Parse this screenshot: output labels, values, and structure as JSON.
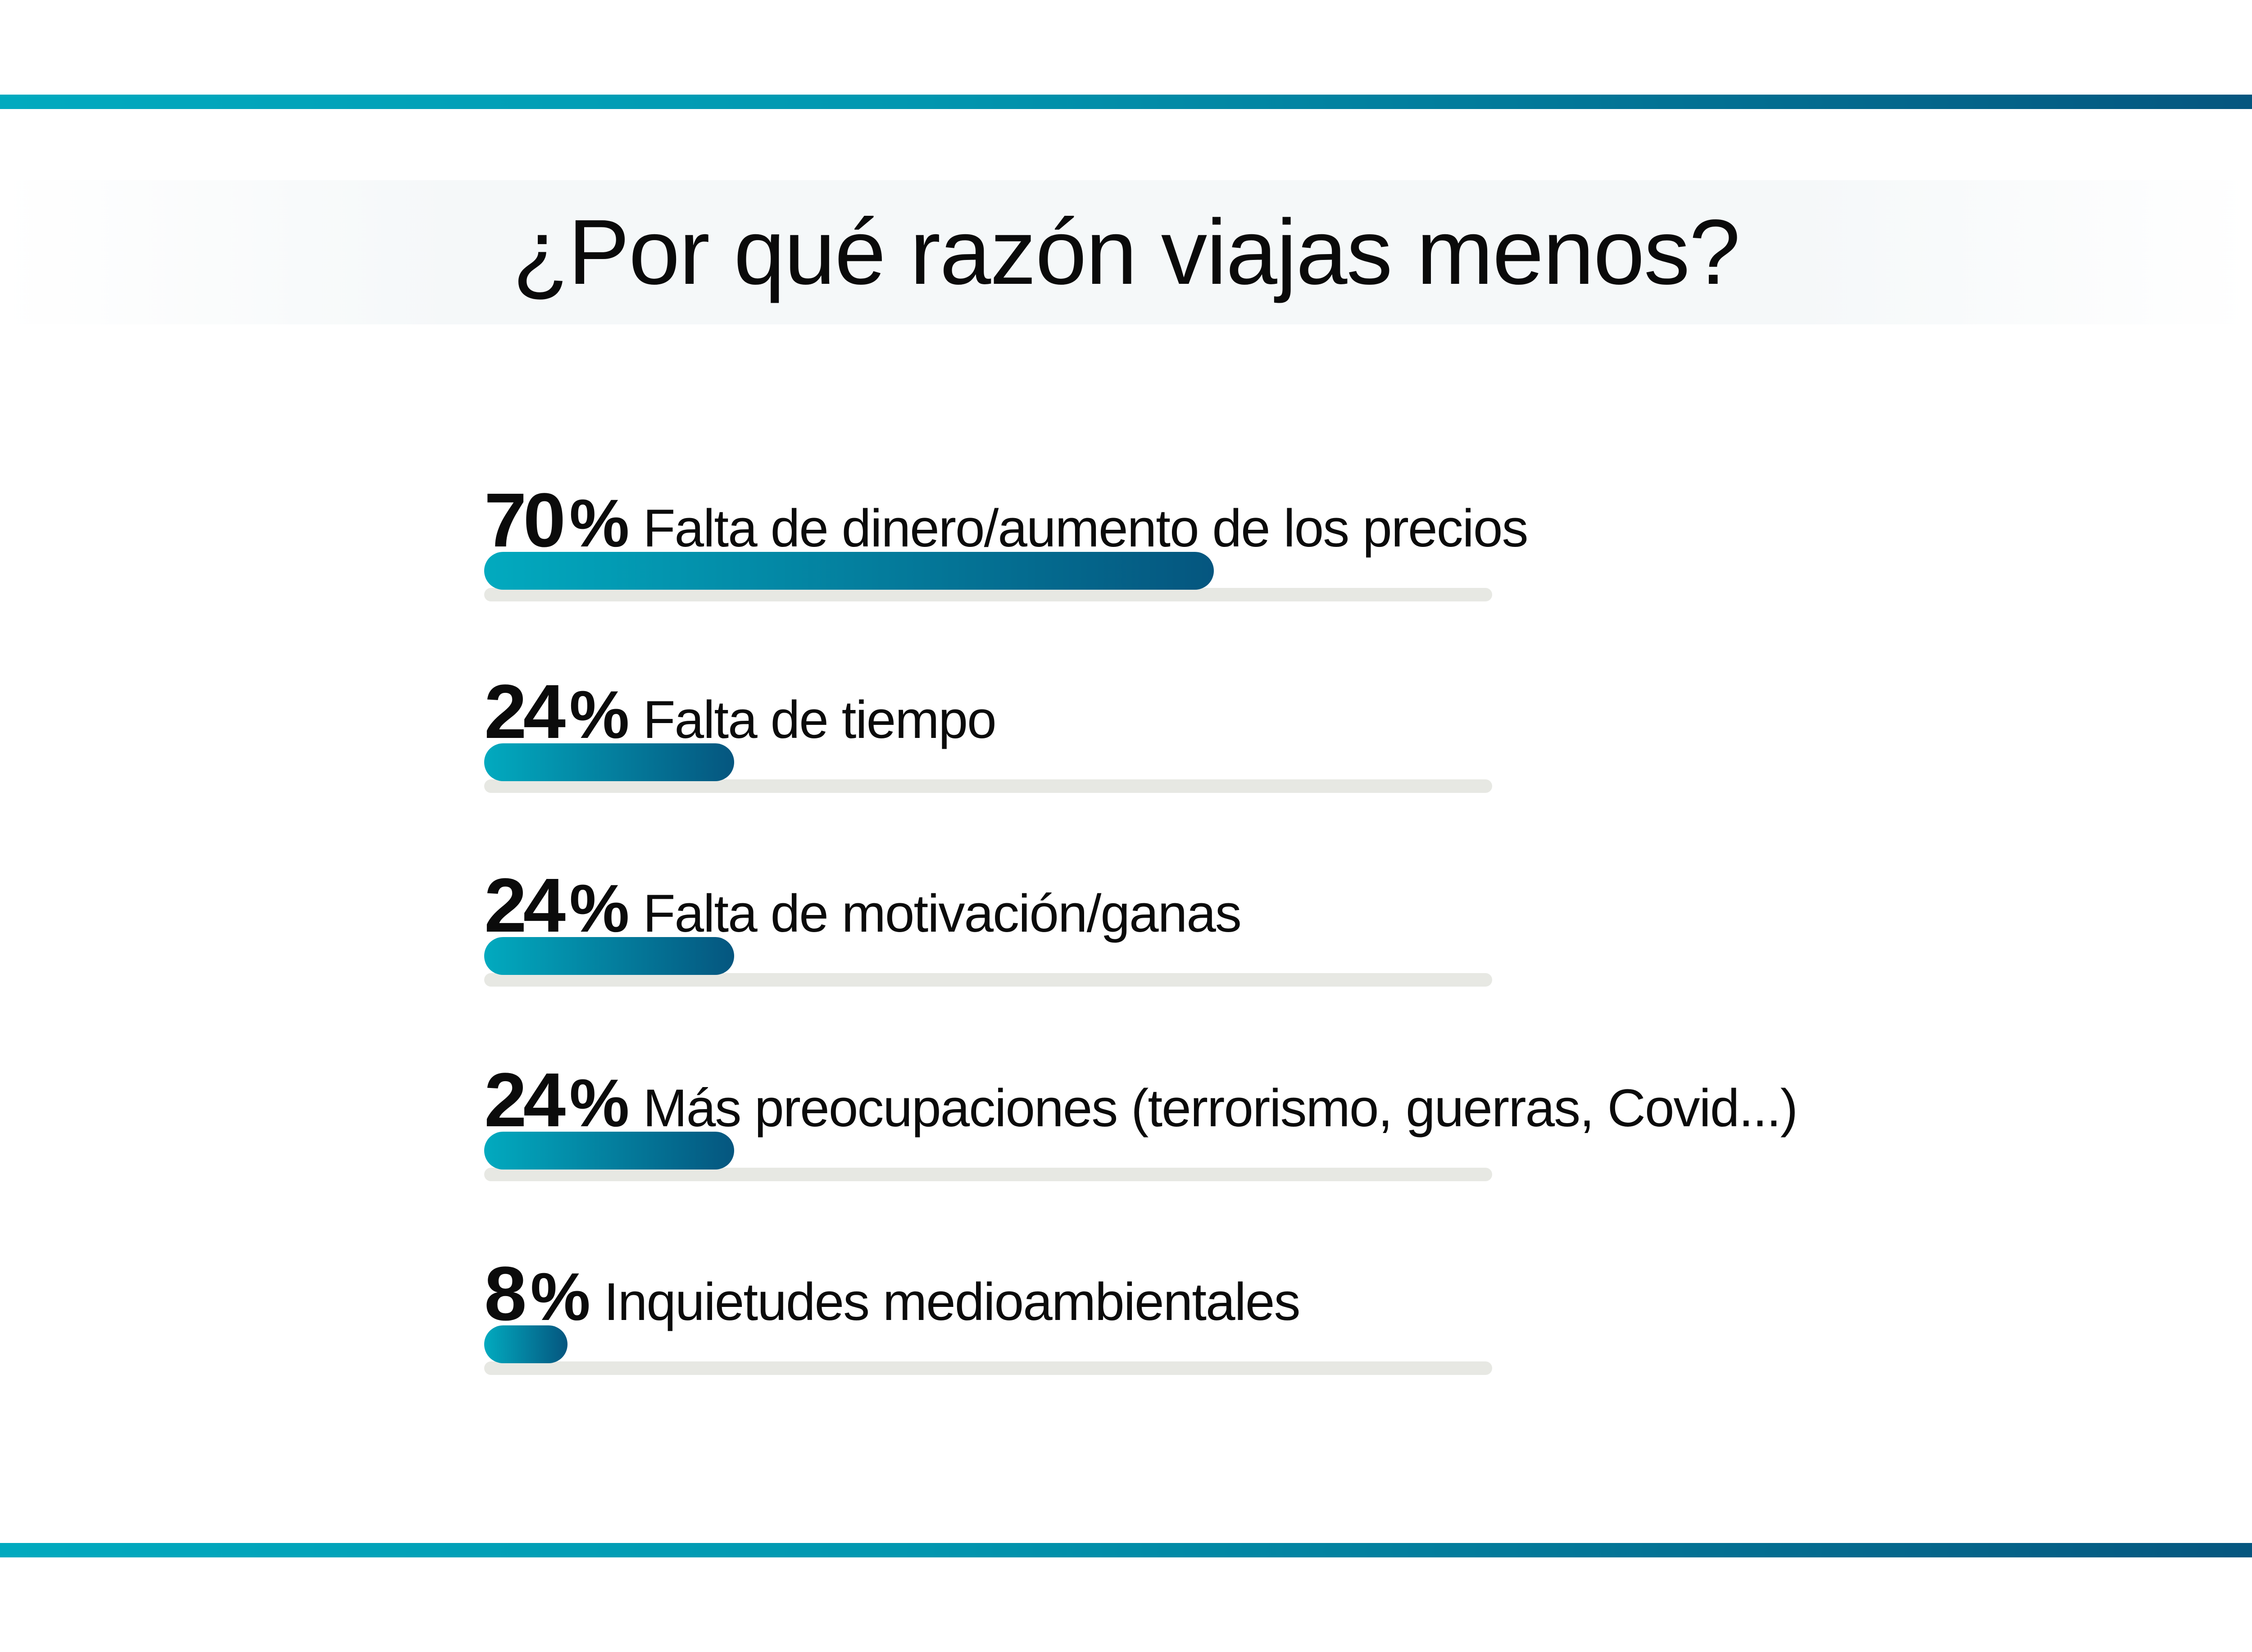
{
  "title": "¿Por qué razón viajas menos?",
  "colors": {
    "accent_start": "#02aabf",
    "accent_end": "#05567f",
    "track": "#e7e8e3",
    "title_band": "#f5f8f9",
    "text": "#0b0b0b"
  },
  "items": [
    {
      "value": "70",
      "unit": "%",
      "label": "Falta de dinero/aumento de los precios"
    },
    {
      "value": "24",
      "unit": "%",
      "label": "Falta de tiempo"
    },
    {
      "value": "24",
      "unit": "%",
      "label": "Falta de motivación/ganas"
    },
    {
      "value": "24",
      "unit": "%",
      "label": "Más preocupaciones (terrorismo, guerras, Covid...)"
    },
    {
      "value": "8",
      "unit": "%",
      "label": "Inquietudes medioambientales"
    }
  ],
  "chart_data": {
    "type": "bar",
    "orientation": "horizontal",
    "title": "¿Por qué razón viajas menos?",
    "categories": [
      "Falta de dinero/aumento de los precios",
      "Falta de tiempo",
      "Falta de motivación/ganas",
      "Más preocupaciones (terrorismo, guerras, Covid...)",
      "Inquietudes medioambientales"
    ],
    "values": [
      70,
      24,
      24,
      24,
      8
    ],
    "unit": "%",
    "xlabel": "",
    "ylabel": "",
    "xlim": [
      0,
      100
    ],
    "grid": false,
    "legend": "none",
    "data_labels": [
      "70%",
      "24%",
      "24%",
      "24%",
      "8%"
    ]
  }
}
